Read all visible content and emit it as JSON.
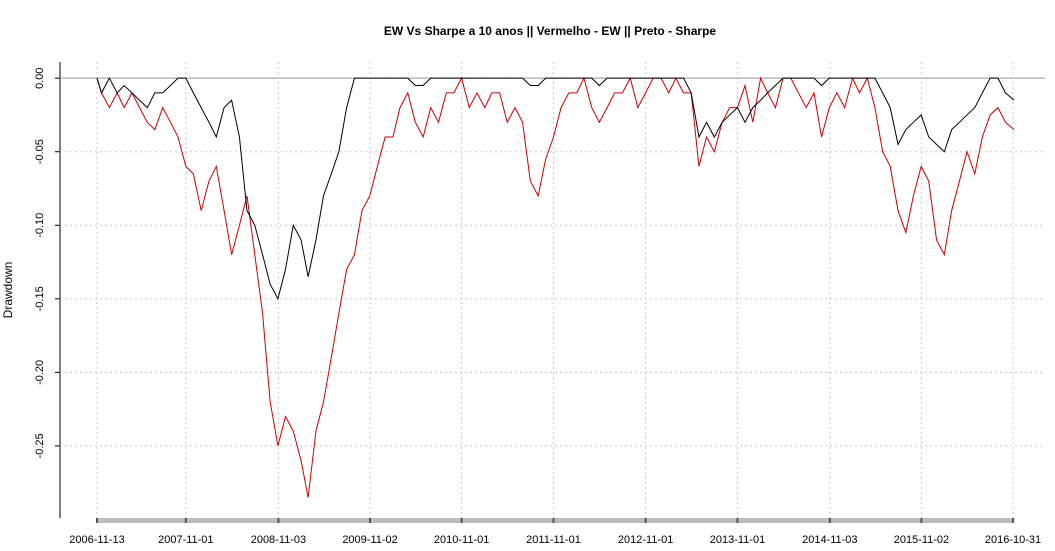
{
  "chart_data": {
    "type": "line",
    "title": "EW Vs Sharpe a 10 anos || Vermelho - EW || Preto - Sharpe",
    "ylabel": "Drawdown",
    "grid": true,
    "xlim": [
      "2006-06-19",
      "2017-03-07"
    ],
    "ylim": [
      -0.299,
      0.011
    ],
    "yticks": [
      {
        "value": 0,
        "label": "0.00"
      },
      {
        "value": -0.05,
        "label": "-0.05"
      },
      {
        "value": -0.1,
        "label": "-0.10"
      },
      {
        "value": -0.15,
        "label": "-0.15"
      },
      {
        "value": -0.2,
        "label": "-0.20"
      },
      {
        "value": -0.25,
        "label": "-0.25"
      }
    ],
    "xticks": [
      "2006-11-13",
      "2007-11-01",
      "2008-11-03",
      "2009-11-02",
      "2010-11-01",
      "2011-11-01",
      "2012-11-01",
      "2013-11-01",
      "2014-11-03",
      "2015-11-02",
      "2016-10-31"
    ],
    "x": [
      "2006-11-13",
      "2006-12-01",
      "2007-01-01",
      "2007-02-01",
      "2007-03-01",
      "2007-04-01",
      "2007-05-01",
      "2007-06-01",
      "2007-07-01",
      "2007-08-01",
      "2007-09-01",
      "2007-10-01",
      "2007-11-01",
      "2007-12-01",
      "2008-01-01",
      "2008-02-01",
      "2008-03-01",
      "2008-04-01",
      "2008-05-01",
      "2008-06-01",
      "2008-07-01",
      "2008-08-01",
      "2008-09-01",
      "2008-10-01",
      "2008-11-01",
      "2008-12-01",
      "2009-01-01",
      "2009-02-01",
      "2009-03-01",
      "2009-04-01",
      "2009-05-01",
      "2009-06-01",
      "2009-07-01",
      "2009-08-01",
      "2009-09-01",
      "2009-10-01",
      "2009-11-01",
      "2009-12-01",
      "2010-01-01",
      "2010-02-01",
      "2010-03-01",
      "2010-04-01",
      "2010-05-01",
      "2010-06-01",
      "2010-07-01",
      "2010-08-01",
      "2010-09-01",
      "2010-10-01",
      "2010-11-01",
      "2010-12-01",
      "2011-01-01",
      "2011-02-01",
      "2011-03-01",
      "2011-04-01",
      "2011-05-01",
      "2011-06-01",
      "2011-07-01",
      "2011-08-01",
      "2011-09-01",
      "2011-10-01",
      "2011-11-01",
      "2011-12-01",
      "2012-01-01",
      "2012-02-01",
      "2012-03-01",
      "2012-04-01",
      "2012-05-01",
      "2012-06-01",
      "2012-07-01",
      "2012-08-01",
      "2012-09-01",
      "2012-10-01",
      "2012-11-01",
      "2012-12-01",
      "2013-01-01",
      "2013-02-01",
      "2013-03-01",
      "2013-04-01",
      "2013-05-01",
      "2013-06-01",
      "2013-07-01",
      "2013-08-01",
      "2013-09-01",
      "2013-10-01",
      "2013-11-01",
      "2013-12-01",
      "2014-01-01",
      "2014-02-01",
      "2014-03-01",
      "2014-04-01",
      "2014-05-01",
      "2014-06-01",
      "2014-07-01",
      "2014-08-01",
      "2014-09-01",
      "2014-10-01",
      "2014-11-01",
      "2014-12-01",
      "2015-01-01",
      "2015-02-01",
      "2015-03-01",
      "2015-04-01",
      "2015-05-01",
      "2015-06-01",
      "2015-07-01",
      "2015-08-01",
      "2015-09-01",
      "2015-10-01",
      "2015-11-01",
      "2015-12-01",
      "2016-01-01",
      "2016-02-01",
      "2016-03-01",
      "2016-04-01",
      "2016-05-01",
      "2016-06-01",
      "2016-07-01",
      "2016-08-01",
      "2016-09-01",
      "2016-10-01",
      "2016-11-04"
    ],
    "series": [
      {
        "color": "#cc0000",
        "values": [
          0,
          -0.01,
          -0.02,
          -0.01,
          -0.02,
          -0.01,
          -0.02,
          -0.03,
          -0.035,
          -0.02,
          -0.03,
          -0.04,
          -0.06,
          -0.065,
          -0.09,
          -0.07,
          -0.06,
          -0.09,
          -0.12,
          -0.1,
          -0.08,
          -0.12,
          -0.16,
          -0.22,
          -0.25,
          -0.23,
          -0.24,
          -0.26,
          -0.285,
          -0.24,
          -0.22,
          -0.19,
          -0.16,
          -0.13,
          -0.12,
          -0.09,
          -0.08,
          -0.06,
          -0.04,
          -0.04,
          -0.02,
          -0.01,
          -0.03,
          -0.04,
          -0.02,
          -0.03,
          -0.01,
          -0.01,
          0,
          -0.02,
          -0.01,
          -0.02,
          -0.01,
          -0.01,
          -0.03,
          -0.02,
          -0.03,
          -0.07,
          -0.08,
          -0.055,
          -0.04,
          -0.02,
          -0.01,
          -0.01,
          0,
          -0.02,
          -0.03,
          -0.02,
          -0.01,
          -0.01,
          0,
          -0.02,
          -0.01,
          0,
          0,
          -0.01,
          0,
          -0.01,
          -0.01,
          -0.06,
          -0.04,
          -0.05,
          -0.03,
          -0.02,
          -0.02,
          -0.005,
          -0.03,
          0,
          -0.01,
          -0.02,
          0,
          0,
          -0.01,
          -0.02,
          -0.01,
          -0.04,
          -0.02,
          -0.01,
          -0.02,
          0,
          -0.01,
          0,
          -0.02,
          -0.05,
          -0.06,
          -0.09,
          -0.105,
          -0.08,
          -0.06,
          -0.07,
          -0.11,
          -0.12,
          -0.09,
          -0.07,
          -0.05,
          -0.065,
          -0.04,
          -0.025,
          -0.02,
          -0.03,
          -0.035
        ]
      },
      {
        "color": "#000000",
        "values": [
          0,
          -0.01,
          0,
          -0.01,
          -0.005,
          -0.01,
          -0.015,
          -0.02,
          -0.01,
          -0.01,
          -0.005,
          0,
          0,
          -0.01,
          -0.02,
          -0.03,
          -0.04,
          -0.02,
          -0.015,
          -0.04,
          -0.09,
          -0.1,
          -0.12,
          -0.14,
          -0.15,
          -0.13,
          -0.1,
          -0.11,
          -0.135,
          -0.11,
          -0.08,
          -0.065,
          -0.05,
          -0.02,
          0,
          0,
          0,
          0,
          0,
          0,
          0,
          0,
          -0.005,
          -0.005,
          0,
          0,
          0,
          0,
          0,
          0,
          0,
          0,
          0,
          0,
          0,
          0,
          0,
          -0.005,
          -0.005,
          0,
          0,
          0,
          0,
          0,
          0,
          0,
          -0.005,
          0,
          0,
          0,
          0,
          0,
          0,
          0,
          0,
          0,
          0,
          0,
          -0.01,
          -0.04,
          -0.03,
          -0.04,
          -0.03,
          -0.025,
          -0.02,
          -0.03,
          -0.02,
          -0.015,
          -0.01,
          -0.005,
          0,
          0,
          0,
          0,
          0,
          -0.005,
          0,
          0,
          0,
          0,
          0,
          0,
          0,
          -0.01,
          -0.02,
          -0.045,
          -0.035,
          -0.03,
          -0.025,
          -0.04,
          -0.045,
          -0.05,
          -0.035,
          -0.03,
          -0.025,
          -0.02,
          -0.01,
          0,
          0,
          -0.01,
          -0.015
        ]
      }
    ]
  }
}
